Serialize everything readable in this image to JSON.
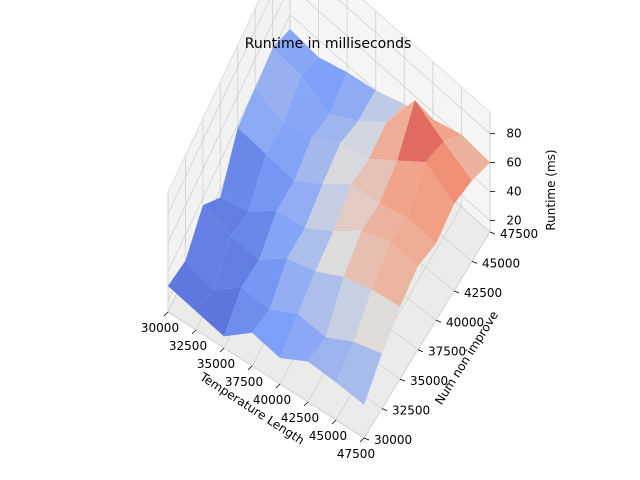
{
  "chart_data": {
    "type": "surface",
    "title": "Runtime in milliseconds",
    "xlabel": "Temperature Length",
    "ylabel": "Num non improve",
    "zlabel": "Runtime (ms)",
    "x": [
      30000,
      32500,
      35000,
      37500,
      40000,
      42500,
      45000,
      47500
    ],
    "y": [
      30000,
      32500,
      35000,
      37500,
      40000,
      42500,
      45000,
      47500
    ],
    "x_ticks": [
      "30000",
      "32500",
      "35000",
      "37500",
      "40000",
      "42500",
      "45000",
      "47500"
    ],
    "y_ticks": [
      "30000",
      "32500",
      "35000",
      "37500",
      "40000",
      "42500",
      "45000",
      "47500"
    ],
    "z_ticks": [
      "20",
      "40",
      "60",
      "80"
    ],
    "zlim": [
      12,
      95
    ],
    "colormap": "coolwarm",
    "z": [
      [
        30,
        22,
        35,
        15,
        38,
        40,
        42,
        30
      ],
      [
        25,
        15,
        28,
        20,
        35,
        32,
        40,
        28
      ],
      [
        20,
        30,
        25,
        35,
        32,
        38,
        30,
        35
      ],
      [
        35,
        28,
        40,
        38,
        45,
        50,
        42,
        40
      ],
      [
        30,
        38,
        45,
        50,
        60,
        55,
        58,
        48
      ],
      [
        40,
        35,
        55,
        65,
        62,
        70,
        90,
        55
      ],
      [
        38,
        45,
        60,
        72,
        68,
        85,
        78,
        62
      ],
      [
        35,
        50,
        62,
        70,
        65,
        72,
        68,
        60
      ]
    ]
  }
}
